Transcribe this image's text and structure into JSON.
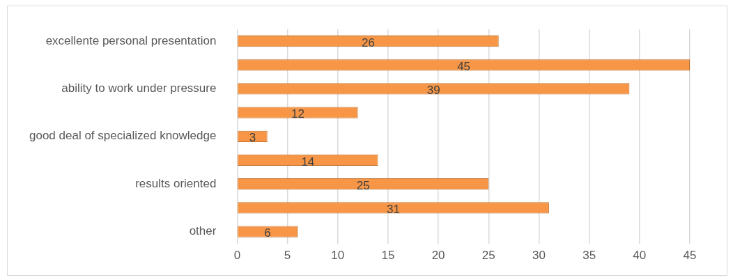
{
  "chart_data": {
    "type": "bar",
    "orientation": "horizontal",
    "categories": [
      "excellente personal presentation",
      null,
      "ability to work under pressure",
      null,
      "good deal of specialized knowledge",
      null,
      "results oriented",
      null,
      "other"
    ],
    "values": [
      26,
      45,
      39,
      12,
      3,
      14,
      25,
      31,
      6
    ],
    "color": "#f79646",
    "xlim": [
      0,
      45
    ],
    "xticks": [
      0,
      5,
      10,
      15,
      20,
      25,
      30,
      35,
      40,
      45
    ],
    "grid": "x",
    "legend": false,
    "data_labels": true
  }
}
